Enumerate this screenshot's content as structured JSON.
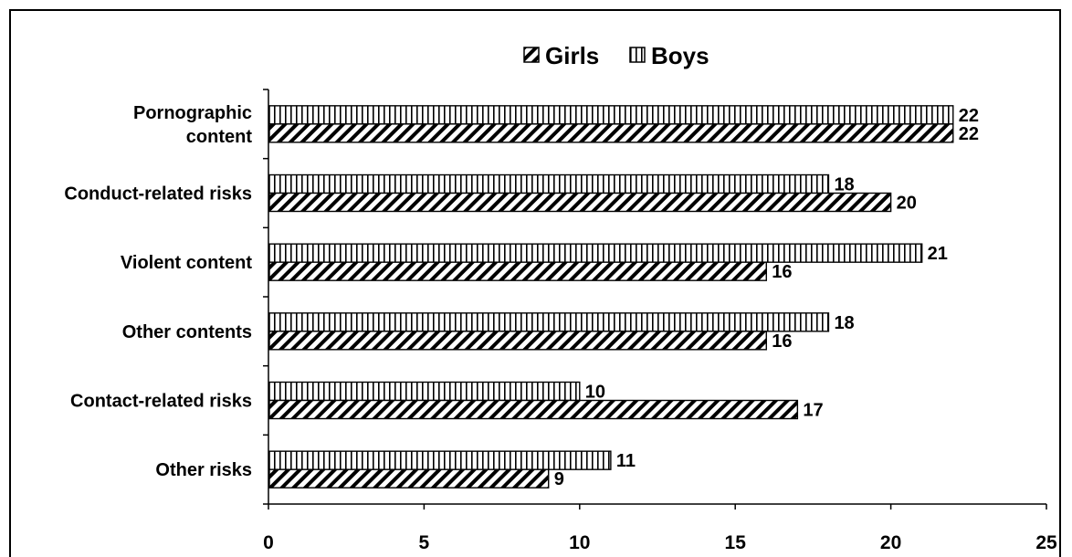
{
  "chart_data": {
    "type": "bar",
    "orientation": "horizontal",
    "categories": [
      [
        "Pornographic",
        "content"
      ],
      [
        "Conduct-related risks"
      ],
      [
        "Violent content"
      ],
      [
        "Other contents"
      ],
      [
        "Contact-related risks"
      ],
      [
        "Other risks"
      ]
    ],
    "series": [
      {
        "name": "Girls",
        "pattern": "diagonal-hatch",
        "values": [
          22,
          20,
          16,
          16,
          17,
          9
        ]
      },
      {
        "name": "Boys",
        "pattern": "vertical-hatch",
        "values": [
          22,
          18,
          21,
          18,
          10,
          11
        ]
      }
    ],
    "x_ticks": [
      "0",
      "5",
      "10",
      "15",
      "20",
      "25"
    ],
    "xlim": [
      0,
      25
    ],
    "grid": false,
    "legend_position": "top-center",
    "colors": {
      "bar_fill": "#ffffff",
      "hatch": "#000000",
      "axis": "#000000"
    }
  }
}
